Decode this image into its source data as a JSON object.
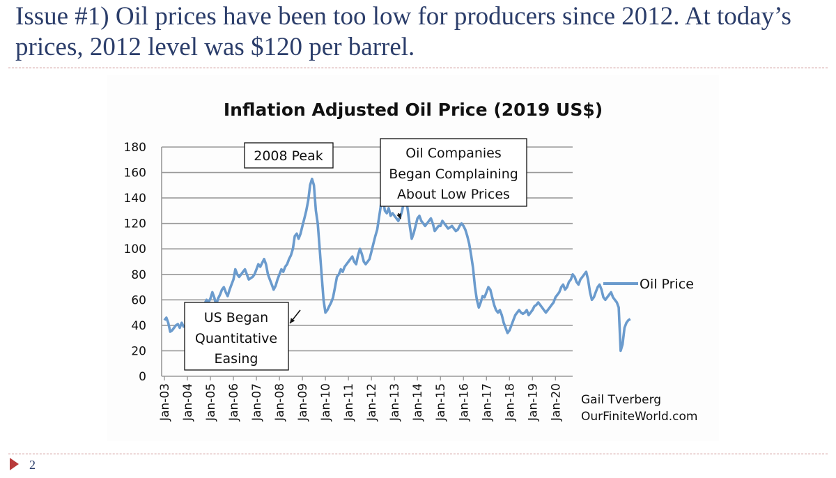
{
  "slide": {
    "title": "Issue #1) Oil prices have been too low for producers since 2012. At today’s prices, 2012 level was $120 per barrel.",
    "page_number": "2"
  },
  "colors": {
    "series": "#6b9bcd",
    "title_text": "#2b3d6a",
    "divider": "#c98b8b",
    "marker": "#b83a3a",
    "grid": "#999999"
  },
  "chart_data": {
    "type": "line",
    "title": "Inflation Adjusted Oil Price (2019 US$)",
    "xlabel": "",
    "ylabel": "",
    "ylim": [
      0,
      180
    ],
    "y_ticks": [
      0,
      20,
      40,
      60,
      80,
      100,
      120,
      140,
      160,
      180
    ],
    "x_tick_labels": [
      "Jan-03",
      "Jan-04",
      "Jan-05",
      "Jan-06",
      "Jan-07",
      "Jan-08",
      "Jan-09",
      "Jan-10",
      "Jan-11",
      "Jan-12",
      "Jan-13",
      "Jan-14",
      "Jan-15",
      "Jan-16",
      "Jan-17",
      "Jan-18",
      "Jan-19",
      "Jan-20"
    ],
    "grid": "horizontal",
    "legend_position": "right",
    "series": [
      {
        "name": "Oil Price",
        "start": "Jan-03",
        "frequency": "monthly",
        "values": [
          44,
          46,
          42,
          35,
          36,
          38,
          40,
          41,
          38,
          42,
          39,
          40,
          41,
          42,
          44,
          46,
          44,
          48,
          52,
          50,
          55,
          57,
          60,
          58,
          61,
          66,
          62,
          56,
          61,
          64,
          68,
          70,
          66,
          63,
          68,
          72,
          76,
          84,
          80,
          78,
          80,
          82,
          84,
          80,
          76,
          77,
          78,
          80,
          84,
          88,
          86,
          89,
          92,
          88,
          80,
          76,
          72,
          68,
          71,
          76,
          80,
          84,
          82,
          86,
          88,
          92,
          95,
          100,
          110,
          112,
          108,
          112,
          118,
          124,
          130,
          138,
          150,
          155,
          150,
          130,
          120,
          100,
          80,
          60,
          50,
          52,
          55,
          58,
          62,
          70,
          78,
          80,
          84,
          82,
          86,
          88,
          90,
          92,
          94,
          90,
          88,
          95,
          100,
          96,
          90,
          88,
          90,
          92,
          98,
          104,
          110,
          115,
          125,
          135,
          140,
          130,
          128,
          132,
          126,
          128,
          126,
          124,
          122,
          125,
          130,
          138,
          140,
          130,
          118,
          108,
          112,
          118,
          124,
          126,
          122,
          120,
          118,
          120,
          122,
          124,
          120,
          114,
          116,
          118,
          118,
          122,
          120,
          118,
          116,
          117,
          118,
          116,
          114,
          115,
          118,
          120,
          118,
          115,
          110,
          104,
          95,
          85,
          70,
          60,
          54,
          58,
          63,
          62,
          66,
          70,
          68,
          62,
          56,
          52,
          50,
          52,
          48,
          42,
          38,
          34,
          36,
          40,
          44,
          48,
          50,
          52,
          50,
          49,
          50,
          52,
          48,
          50,
          52,
          55,
          56,
          58,
          56,
          54,
          52,
          50,
          52,
          54,
          56,
          58,
          62,
          64,
          66,
          70,
          72,
          68,
          70,
          74,
          76,
          80,
          78,
          74,
          72,
          76,
          78,
          80,
          82,
          76,
          66,
          60,
          62,
          66,
          70,
          72,
          68,
          62,
          60,
          62,
          64,
          66,
          62,
          60,
          58,
          54,
          20,
          25,
          38,
          42,
          44,
          45
        ]
      }
    ],
    "annotations": [
      {
        "label": "2008 Peak",
        "lines": [
          "2008 Peak"
        ]
      },
      {
        "label": "Oil Companies Began Complaining About Low Prices",
        "lines": [
          "Oil Companies",
          "Began Complaining",
          "About Low Prices"
        ]
      },
      {
        "label": "US Began Quantitative Easing",
        "lines": [
          "US Began",
          "Quantitative",
          "Easing"
        ]
      }
    ],
    "credit_lines": [
      "Gail Tverberg",
      "OurFiniteWorld.com"
    ]
  }
}
